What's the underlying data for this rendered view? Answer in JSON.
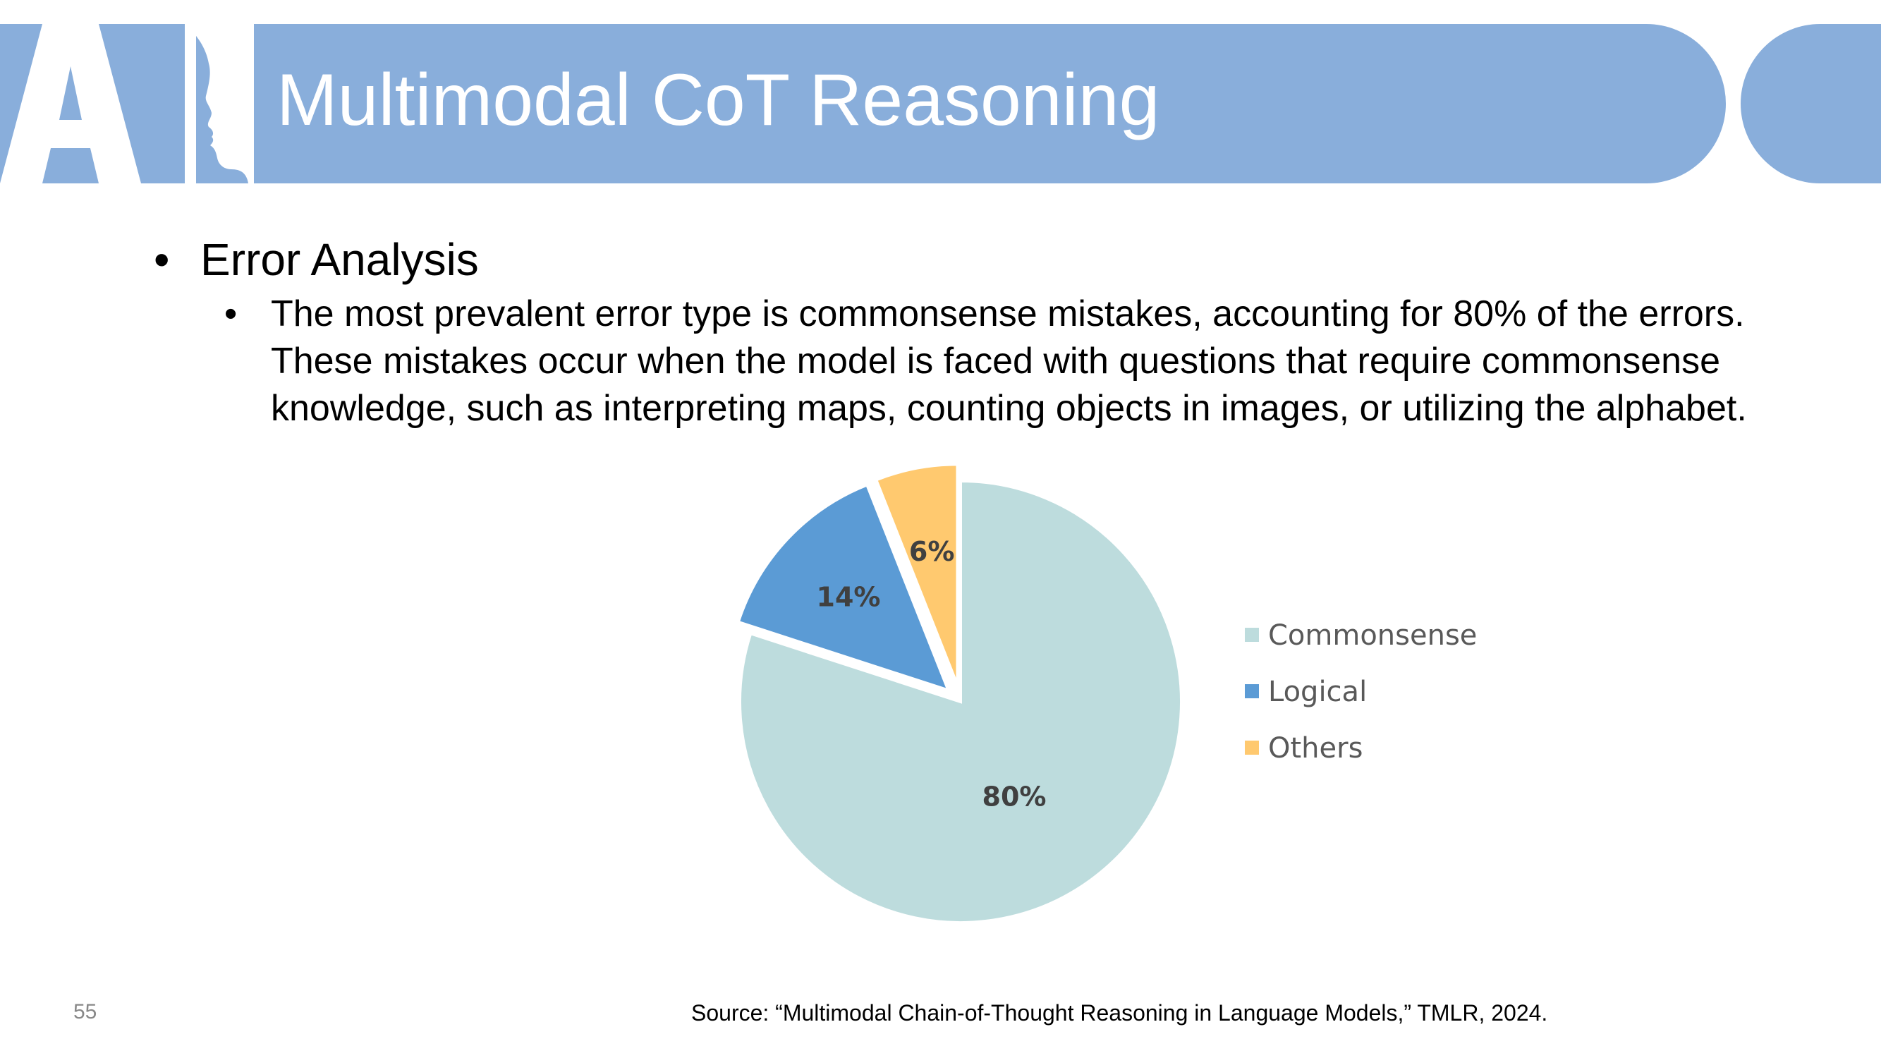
{
  "header": {
    "title": "Multimodal CoT Reasoning",
    "logo_text": "AI"
  },
  "bullets": {
    "main": "Error Analysis",
    "sub": "The most prevalent error type is commonsense mistakes, accounting for 80% of the errors. These mistakes occur when the model is faced with questions that require commonsense knowledge, such as interpreting maps, counting objects in images, or utilizing the alphabet.",
    "bullet_char": "•"
  },
  "chart_data": {
    "type": "pie",
    "categories": [
      "Commonsense",
      "Logical",
      "Others"
    ],
    "values": [
      80,
      14,
      6
    ],
    "labels": [
      "80%",
      "14%",
      "6%"
    ],
    "colors": [
      "#bddcdd",
      "#5b9bd5",
      "#ffc96f"
    ],
    "exploded": [
      "Logical",
      "Others"
    ],
    "legend_position": "right"
  },
  "footer": {
    "page_number": "55",
    "source": "Source: “Multimodal Chain-of-Thought Reasoning in Language Models,” TMLR, 2024."
  },
  "colors": {
    "banner": "#89aedb",
    "title_text": "#ffffff"
  }
}
